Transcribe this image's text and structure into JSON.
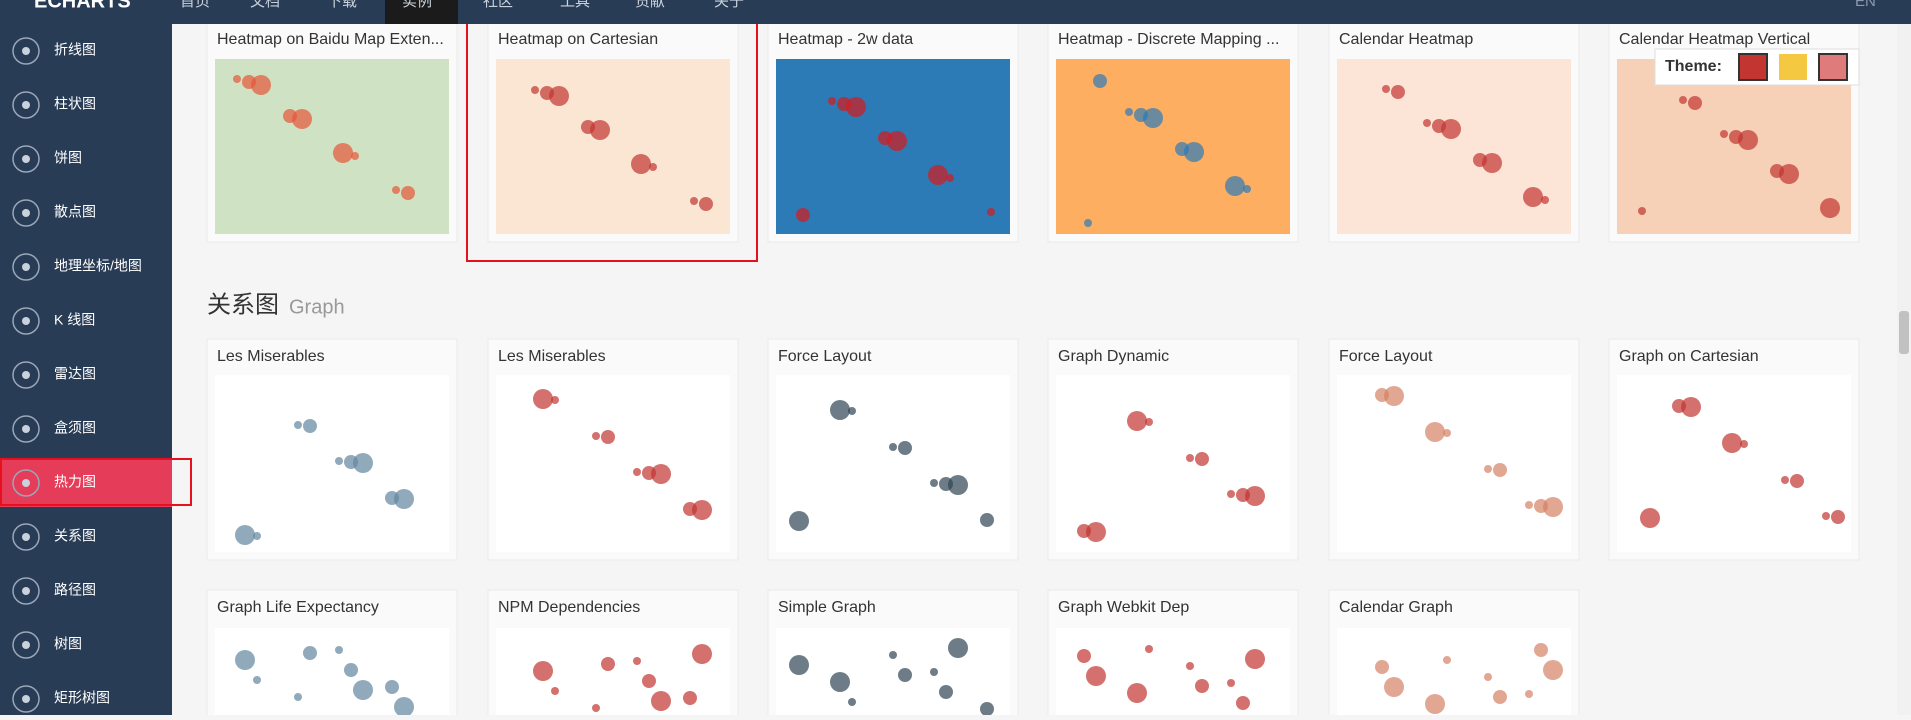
{
  "nav": {
    "logo": "ECHARTS",
    "items": [
      "首页",
      "文档",
      "下载",
      "实例",
      "社区",
      "工具",
      "贡献",
      "关于"
    ],
    "lang": "EN"
  },
  "sidebar": [
    "折线图",
    "柱状图",
    "饼图",
    "散点图",
    "地理坐标/地图",
    "K 线图",
    "雷达图",
    "盒须图",
    "热力图",
    "关系图",
    "路径图",
    "树图",
    "矩形树图"
  ],
  "row1": [
    "Heatmap on Baidu Map Exten...",
    "Heatmap on Cartesian",
    "Heatmap - 2w data",
    "Heatmap - Discrete Mapping ...",
    "Calendar Heatmap",
    "Calendar Heatmap Vertical"
  ],
  "section": {
    "zh": "关系图",
    "en": "Graph"
  },
  "row2": [
    "Les Miserables",
    "Les Miserables",
    "Force Layout",
    "Graph Dynamic",
    "Force Layout",
    "Graph on Cartesian"
  ],
  "row3": [
    "Graph Life Expectancy",
    "NPM Dependencies",
    "Simple Graph",
    "Graph Webkit Dep",
    "Calendar Graph"
  ],
  "theme": {
    "label": "Theme:"
  }
}
